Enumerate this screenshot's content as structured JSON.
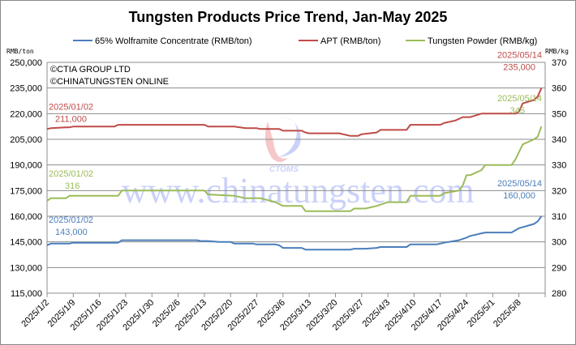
{
  "chart_data": {
    "type": "line",
    "title": "Tungsten Products Price Trend, Jan-May 2025",
    "copyright": [
      "©CTIA GROUP LTD",
      "©CHINATUNGSTEN ONLINE"
    ],
    "watermark": {
      "logo_text": "CTOMS",
      "url_text": "www.chinatungsten.com"
    },
    "left_axis": {
      "unit": "RMB/ton",
      "range": [
        115000,
        250000
      ],
      "ticks": [
        "115,000",
        "130,000",
        "145,000",
        "160,000",
        "175,000",
        "190,000",
        "205,000",
        "220,000",
        "235,000",
        "250,000"
      ]
    },
    "right_axis": {
      "unit": "RMB/kg",
      "range": [
        280,
        370
      ],
      "ticks": [
        "280",
        "290",
        "300",
        "310",
        "320",
        "330",
        "340",
        "350",
        "360",
        "370"
      ]
    },
    "x_axis": {
      "range": [
        "2025-01-02",
        "2025-05-15"
      ],
      "ticks": [
        "2025/1/2",
        "2025/1/9",
        "2025/1/16",
        "2025/1/23",
        "2025/1/30",
        "2025/2/6",
        "2025/2/13",
        "2025/2/20",
        "2025/2/27",
        "2025/3/6",
        "2025/3/13",
        "2025/3/20",
        "2025/3/27",
        "2025/4/3",
        "2025/4/10",
        "2025/4/17",
        "2025/4/24",
        "2025/5/1",
        "2025/5/8"
      ]
    },
    "grid": "horizontal",
    "legend_position": "top",
    "series": [
      {
        "name": "65% Wolframite Concentrate (RMB/ton)",
        "axis": "left",
        "color": "#4a7ebb",
        "points": [
          [
            "2025-01-02",
            143000
          ],
          [
            "2025-01-03",
            144000
          ],
          [
            "2025-01-08",
            144000
          ],
          [
            "2025-01-09",
            144500
          ],
          [
            "2025-01-21",
            144500
          ],
          [
            "2025-01-22",
            146000
          ],
          [
            "2025-02-11",
            146000
          ],
          [
            "2025-02-12",
            145500
          ],
          [
            "2025-02-14",
            145500
          ],
          [
            "2025-02-17",
            145000
          ],
          [
            "2025-02-20",
            145000
          ],
          [
            "2025-02-21",
            144000
          ],
          [
            "2025-02-26",
            144000
          ],
          [
            "2025-02-27",
            143500
          ],
          [
            "2025-03-04",
            143500
          ],
          [
            "2025-03-05",
            143000
          ],
          [
            "2025-03-06",
            141500
          ],
          [
            "2025-03-11",
            141500
          ],
          [
            "2025-03-12",
            140500
          ],
          [
            "2025-03-24",
            140500
          ],
          [
            "2025-03-25",
            141000
          ],
          [
            "2025-03-28",
            141000
          ],
          [
            "2025-03-31",
            141500
          ],
          [
            "2025-04-01",
            142000
          ],
          [
            "2025-04-08",
            142000
          ],
          [
            "2025-04-09",
            143500
          ],
          [
            "2025-04-16",
            143500
          ],
          [
            "2025-04-17",
            144000
          ],
          [
            "2025-04-18",
            144500
          ],
          [
            "2025-04-22",
            146000
          ],
          [
            "2025-04-24",
            147500
          ],
          [
            "2025-04-25",
            148500
          ],
          [
            "2025-04-28",
            150000
          ],
          [
            "2025-04-29",
            150500
          ],
          [
            "2025-05-06",
            150500
          ],
          [
            "2025-05-08",
            153000
          ],
          [
            "2025-05-12",
            155500
          ],
          [
            "2025-05-13",
            157000
          ],
          [
            "2025-05-14",
            160000
          ]
        ],
        "annotations": [
          {
            "date": "2025/01/02",
            "value": "143,000"
          },
          {
            "date": "2025/05/14",
            "value": "160,000"
          }
        ]
      },
      {
        "name": "APT (RMB/ton)",
        "axis": "left",
        "color": "#be4b48",
        "points": [
          [
            "2025-01-02",
            211000
          ],
          [
            "2025-01-03",
            211500
          ],
          [
            "2025-01-07",
            212000
          ],
          [
            "2025-01-08",
            212000
          ],
          [
            "2025-01-09",
            212500
          ],
          [
            "2025-01-20",
            212500
          ],
          [
            "2025-01-21",
            213500
          ],
          [
            "2025-02-13",
            213500
          ],
          [
            "2025-02-14",
            212500
          ],
          [
            "2025-02-21",
            212500
          ],
          [
            "2025-02-24",
            211500
          ],
          [
            "2025-02-27",
            211500
          ],
          [
            "2025-02-28",
            211000
          ],
          [
            "2025-03-05",
            211000
          ],
          [
            "2025-03-06",
            210000
          ],
          [
            "2025-03-11",
            210000
          ],
          [
            "2025-03-12",
            209000
          ],
          [
            "2025-03-13",
            208500
          ],
          [
            "2025-03-21",
            208500
          ],
          [
            "2025-03-24",
            207000
          ],
          [
            "2025-03-26",
            207000
          ],
          [
            "2025-03-27",
            208000
          ],
          [
            "2025-03-31",
            209000
          ],
          [
            "2025-04-01",
            210500
          ],
          [
            "2025-04-08",
            210500
          ],
          [
            "2025-04-09",
            213500
          ],
          [
            "2025-04-17",
            213500
          ],
          [
            "2025-04-18",
            214500
          ],
          [
            "2025-04-21",
            216000
          ],
          [
            "2025-04-23",
            218000
          ],
          [
            "2025-04-25",
            218000
          ],
          [
            "2025-04-28",
            220000
          ],
          [
            "2025-05-07",
            220000
          ],
          [
            "2025-05-08",
            221000
          ],
          [
            "2025-05-09",
            226000
          ],
          [
            "2025-05-12",
            228000
          ],
          [
            "2025-05-13",
            230000
          ],
          [
            "2025-05-14",
            235000
          ]
        ],
        "annotations": [
          {
            "date": "2025/01/02",
            "value": "211,000"
          },
          {
            "date": "2025/05/14",
            "value": "235,000"
          }
        ]
      },
      {
        "name": "Tungsten Powder (RMB/kg)",
        "axis": "right",
        "color": "#9bbb59",
        "points": [
          [
            "2025-01-02",
            316
          ],
          [
            "2025-01-03",
            317
          ],
          [
            "2025-01-07",
            317
          ],
          [
            "2025-01-08",
            318
          ],
          [
            "2025-01-21",
            318
          ],
          [
            "2025-01-22",
            320
          ],
          [
            "2025-02-13",
            320
          ],
          [
            "2025-02-14",
            318.5
          ],
          [
            "2025-02-21",
            318
          ],
          [
            "2025-02-24",
            317
          ],
          [
            "2025-02-28",
            317
          ],
          [
            "2025-03-04",
            315.5
          ],
          [
            "2025-03-06",
            314
          ],
          [
            "2025-03-11",
            314
          ],
          [
            "2025-03-12",
            312
          ],
          [
            "2025-03-24",
            312
          ],
          [
            "2025-03-25",
            313
          ],
          [
            "2025-03-28",
            313
          ],
          [
            "2025-03-31",
            314
          ],
          [
            "2025-04-03",
            315.5
          ],
          [
            "2025-04-08",
            315.5
          ],
          [
            "2025-04-09",
            318
          ],
          [
            "2025-04-17",
            318
          ],
          [
            "2025-04-18",
            319
          ],
          [
            "2025-04-22",
            320
          ],
          [
            "2025-04-23",
            322
          ],
          [
            "2025-04-24",
            326
          ],
          [
            "2025-04-25",
            326
          ],
          [
            "2025-04-28",
            328
          ],
          [
            "2025-04-29",
            330
          ],
          [
            "2025-05-06",
            330
          ],
          [
            "2025-05-07",
            332
          ],
          [
            "2025-05-09",
            338
          ],
          [
            "2025-05-12",
            340
          ],
          [
            "2025-05-13",
            341
          ],
          [
            "2025-05-14",
            345
          ]
        ],
        "annotations": [
          {
            "date": "2025/01/02",
            "value": "316"
          },
          {
            "date": "2025/05/14",
            "value": "345"
          }
        ]
      }
    ]
  }
}
